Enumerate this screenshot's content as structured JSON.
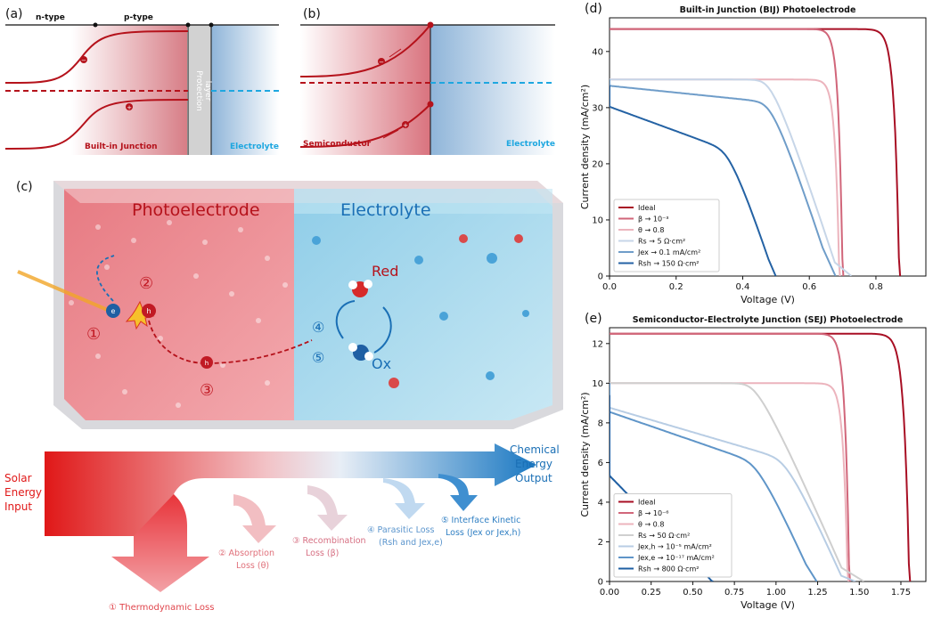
{
  "panels": {
    "a": {
      "label": "(a)",
      "ntype": "n-type",
      "ptype": "p-type",
      "junction": "Built-in Junction",
      "protection_line1": "Protection",
      "protection_line2": "layer",
      "electrolyte": "Electrolyte"
    },
    "b": {
      "label": "(b)",
      "semiconductor": "Semiconductor",
      "electrolyte": "Electrolyte"
    },
    "c": {
      "label": "(c)",
      "photoelectrode": "Photoelectrode",
      "electrolyte": "Electrolyte",
      "red": "Red",
      "ox": "Ox",
      "num1": "①",
      "num2": "②",
      "num3": "③",
      "num4": "④",
      "num5": "⑤",
      "e_sym": "e",
      "h_sym": "h",
      "flow": {
        "input": [
          "Solar",
          "Energy",
          "Input"
        ],
        "output": [
          "Chemical",
          "Energy",
          "Output"
        ],
        "losses": {
          "thermo": "① Thermodynamic Loss",
          "absorption": [
            "② Absorption",
            "Loss (θ)"
          ],
          "recomb": [
            "③ Recombination",
            "Loss (β)"
          ],
          "parasitic": [
            "④ Parasitic Loss",
            "(Rsh and Jex,e)"
          ],
          "kinetic": [
            "⑤ Interface Kinetic",
            "Loss (Jex or Jex,h)"
          ]
        }
      }
    }
  },
  "colors": {
    "red": "#b5121b",
    "blue": "#1a6fb5",
    "cyan": "#1ea7e0",
    "pink": "#e07a84"
  },
  "chart_data": [
    {
      "id": "d",
      "panel_label": "(d)",
      "type": "line",
      "title": "Built-in Junction (BIJ) Photoelectrode",
      "xlabel": "Voltage (V)",
      "ylabel": "Current density (mA/cm²)",
      "xlim": [
        0,
        0.95
      ],
      "ylim": [
        0,
        46
      ],
      "xticks": [
        0.0,
        0.2,
        0.4,
        0.6,
        0.8
      ],
      "xtick_labels": [
        "0.0",
        "0.2",
        "0.4",
        "0.6",
        "0.8"
      ],
      "yticks": [
        0,
        10,
        20,
        30,
        40
      ],
      "ytick_labels": [
        "0",
        "10",
        "20",
        "30",
        "40"
      ],
      "legend_position": "lower-left",
      "series": [
        {
          "name": "Ideal",
          "color": "#a80f24",
          "jsc": 44,
          "voc": 0.87,
          "a": 0.014,
          "rs": 0,
          "rsh": 0
        },
        {
          "name": "β → 10⁻³",
          "color": "#d1667a",
          "jsc": 44,
          "voc": 0.7,
          "a": 0.012,
          "rs": 0,
          "rsh": 0
        },
        {
          "name": "θ → 0.8",
          "color": "#ecb4bd",
          "jsc": 35,
          "voc": 0.69,
          "a": 0.012,
          "rs": 0,
          "rsh": 0
        },
        {
          "name": "Rs → 5 Ω·cm²",
          "color": "#c7d6e8",
          "jsc": 35,
          "voc": 0.69,
          "a": 0.012,
          "rs": 0.0052,
          "rsh": 0
        },
        {
          "name": "Jex → 0.1 mA/cm²",
          "color": "#6f9dc9",
          "jsc": 35,
          "voc": 0.67,
          "a": 0.012,
          "rs": 0.0052,
          "rsh": 0,
          "kin": 0.12
        },
        {
          "name": "Rsh → 150 Ω·cm²",
          "color": "#2462a4",
          "jsc": 34,
          "voc": 0.5,
          "a": 0.012,
          "rs": 0.0052,
          "rsh": 0.15,
          "kin": 0.12
        }
      ],
      "legend_labels": [
        "Ideal",
        "β → 10⁻³",
        "θ → 0.8",
        "Rs → 5 Ω·cm²",
        "Jex → 0.1 mA/cm²",
        "Rsh → 150 Ω·cm²"
      ]
    },
    {
      "id": "e",
      "panel_label": "(e)",
      "type": "line",
      "title": "Semiconductor-Electrolyte Junction (SEJ) Photoelectrode",
      "xlabel": "Voltage (V)",
      "ylabel": "Current density (mA/cm²)",
      "xlim": [
        0,
        1.9
      ],
      "ylim": [
        0,
        12.8
      ],
      "xticks": [
        0.0,
        0.25,
        0.5,
        0.75,
        1.0,
        1.25,
        1.5,
        1.75
      ],
      "xtick_labels": [
        "0.00",
        "0.25",
        "0.50",
        "0.75",
        "1.00",
        "1.25",
        "1.50",
        "1.75"
      ],
      "yticks": [
        0,
        2,
        4,
        6,
        8,
        10,
        12
      ],
      "ytick_labels": [
        "0",
        "2",
        "4",
        "6",
        "8",
        "10",
        "12"
      ],
      "legend_position": "lower-left",
      "series": [
        {
          "name": "Ideal",
          "color": "#a80f24",
          "jsc": 12.5,
          "voc": 1.8,
          "a": 0.03,
          "rs": 0,
          "rsh": 0
        },
        {
          "name": "β → 10⁻⁶",
          "color": "#d1667a",
          "jsc": 12.5,
          "voc": 1.44,
          "a": 0.025,
          "rs": 0,
          "rsh": 0
        },
        {
          "name": "θ → 0.8",
          "color": "#ecb4bd",
          "jsc": 10.0,
          "voc": 1.43,
          "a": 0.025,
          "rs": 0,
          "rsh": 0
        },
        {
          "name": "Rs → 50 Ω·cm²",
          "color": "#cfcfcf",
          "jsc": 10.0,
          "voc": 1.43,
          "a": 0.025,
          "rs": 0.05,
          "rsh": 0
        },
        {
          "name": "Jex,h → 10⁻⁵ mA/cm²",
          "color": "#b8cde4",
          "jsc": 10.0,
          "voc": 1.42,
          "a": 0.025,
          "rs": 0.05,
          "rsh": 0,
          "kin": 0.4
        },
        {
          "name": "Jex,e → 10⁻¹⁷ mA/cm²",
          "color": "#5f95c8",
          "jsc": 10.0,
          "voc": 1.24,
          "a": 0.025,
          "rs": 0.05,
          "rsh": 0,
          "kin": 0.42
        },
        {
          "name": "Rsh → 800 Ω·cm²",
          "color": "#1f5fa3",
          "jsc": 9.4,
          "voc": 1.05,
          "a": 0.025,
          "rs": 0.05,
          "rsh": 0.8,
          "kin": 0.42
        }
      ],
      "legend_labels": [
        "Ideal",
        "β → 10⁻⁶",
        "θ → 0.8",
        "Rs → 50 Ω·cm²",
        "Jex,h → 10⁻⁵ mA/cm²",
        "Jex,e → 10⁻¹⁷ mA/cm²",
        "Rsh → 800 Ω·cm²"
      ]
    }
  ]
}
